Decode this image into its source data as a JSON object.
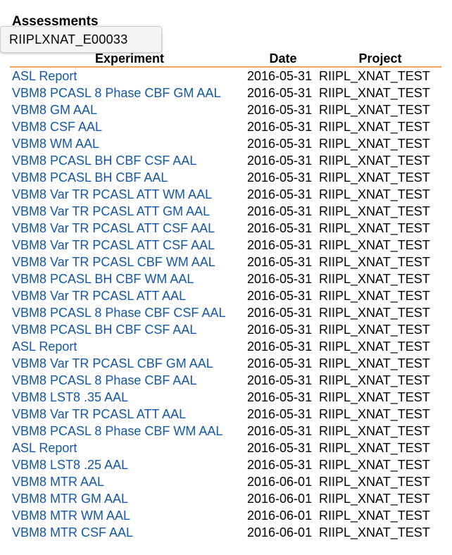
{
  "section": {
    "title": "Assessments"
  },
  "tooltip": {
    "text": "RIIPLXNAT_E00033"
  },
  "table": {
    "headers": {
      "experiment": "Experiment",
      "date": "Date",
      "project": "Project"
    },
    "rows": [
      {
        "experiment": "ASL Report",
        "date": "2016-05-31",
        "project": "RIIPL_XNAT_TEST"
      },
      {
        "experiment": "VBM8 PCASL 8 Phase CBF GM AAL",
        "date": "2016-05-31",
        "project": "RIIPL_XNAT_TEST"
      },
      {
        "experiment": "VBM8 GM AAL",
        "date": "2016-05-31",
        "project": "RIIPL_XNAT_TEST"
      },
      {
        "experiment": "VBM8 CSF AAL",
        "date": "2016-05-31",
        "project": "RIIPL_XNAT_TEST"
      },
      {
        "experiment": "VBM8 WM AAL",
        "date": "2016-05-31",
        "project": "RIIPL_XNAT_TEST"
      },
      {
        "experiment": "VBM8 PCASL BH CBF CSF AAL",
        "date": "2016-05-31",
        "project": "RIIPL_XNAT_TEST"
      },
      {
        "experiment": "VBM8 PCASL BH CBF AAL",
        "date": "2016-05-31",
        "project": "RIIPL_XNAT_TEST"
      },
      {
        "experiment": "VBM8 Var TR PCASL ATT WM AAL",
        "date": "2016-05-31",
        "project": "RIIPL_XNAT_TEST"
      },
      {
        "experiment": "VBM8 Var TR PCASL ATT GM AAL",
        "date": "2016-05-31",
        "project": "RIIPL_XNAT_TEST"
      },
      {
        "experiment": "VBM8 Var TR PCASL ATT CSF AAL",
        "date": "2016-05-31",
        "project": "RIIPL_XNAT_TEST"
      },
      {
        "experiment": "VBM8 Var TR PCASL ATT CSF AAL",
        "date": "2016-05-31",
        "project": "RIIPL_XNAT_TEST"
      },
      {
        "experiment": "VBM8 Var TR PCASL CBF WM AAL",
        "date": "2016-05-31",
        "project": "RIIPL_XNAT_TEST"
      },
      {
        "experiment": "VBM8 PCASL BH CBF WM AAL",
        "date": "2016-05-31",
        "project": "RIIPL_XNAT_TEST"
      },
      {
        "experiment": "VBM8 Var TR PCASL ATT AAL",
        "date": "2016-05-31",
        "project": "RIIPL_XNAT_TEST"
      },
      {
        "experiment": "VBM8 PCASL 8 Phase CBF CSF AAL",
        "date": "2016-05-31",
        "project": "RIIPL_XNAT_TEST"
      },
      {
        "experiment": "VBM8 PCASL BH CBF CSF AAL",
        "date": "2016-05-31",
        "project": "RIIPL_XNAT_TEST"
      },
      {
        "experiment": "ASL Report",
        "date": "2016-05-31",
        "project": "RIIPL_XNAT_TEST"
      },
      {
        "experiment": "VBM8 Var TR PCASL CBF GM AAL",
        "date": "2016-05-31",
        "project": "RIIPL_XNAT_TEST"
      },
      {
        "experiment": "VBM8 PCASL 8 Phase CBF AAL",
        "date": "2016-05-31",
        "project": "RIIPL_XNAT_TEST"
      },
      {
        "experiment": "VBM8 LST8 .35 AAL",
        "date": "2016-05-31",
        "project": "RIIPL_XNAT_TEST"
      },
      {
        "experiment": "VBM8 Var TR PCASL ATT AAL",
        "date": "2016-05-31",
        "project": "RIIPL_XNAT_TEST"
      },
      {
        "experiment": "VBM8 PCASL 8 Phase CBF WM AAL",
        "date": "2016-05-31",
        "project": "RIIPL_XNAT_TEST"
      },
      {
        "experiment": "ASL Report",
        "date": "2016-05-31",
        "project": "RIIPL_XNAT_TEST"
      },
      {
        "experiment": "VBM8 LST8 .25 AAL",
        "date": "2016-05-31",
        "project": "RIIPL_XNAT_TEST"
      },
      {
        "experiment": "VBM8 MTR AAL",
        "date": "2016-06-01",
        "project": "RIIPL_XNAT_TEST"
      },
      {
        "experiment": "VBM8 MTR GM AAL",
        "date": "2016-06-01",
        "project": "RIIPL_XNAT_TEST"
      },
      {
        "experiment": "VBM8 MTR WM AAL",
        "date": "2016-06-01",
        "project": "RIIPL_XNAT_TEST"
      },
      {
        "experiment": "VBM8 MTR CSF AAL",
        "date": "2016-06-01",
        "project": "RIIPL_XNAT_TEST"
      }
    ]
  },
  "colors": {
    "link": "#1257a8",
    "header_rule": "#f0a15a"
  }
}
